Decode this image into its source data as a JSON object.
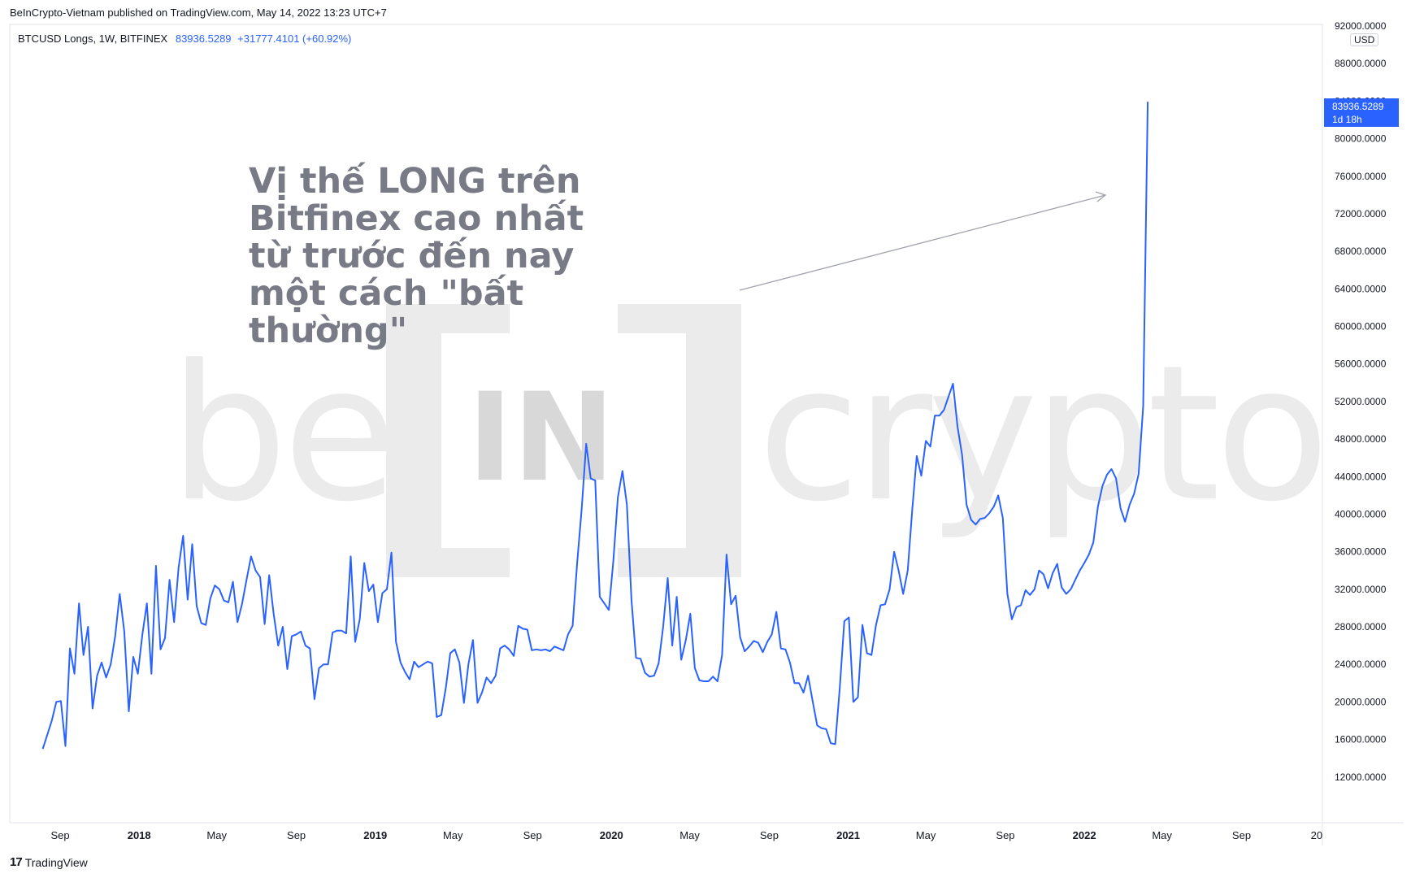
{
  "header": {
    "publisher": "BeInCrypto-Vietnam published on TradingView.com, May 14, 2022 13:23 UTC+7",
    "symbol": "BTCUSD Longs, 1W, BITFINEX",
    "last_value": "83936.5289",
    "change": "+31777.4101 (+60.92%)"
  },
  "annotation": {
    "text": "Vị thế LONG trên Bitfinex cao nhất từ trước đến nay một cách \"bất thường\""
  },
  "watermark": {
    "left": "be",
    "mid": "IN",
    "right": "crypto"
  },
  "price_scale": {
    "currency": "USD",
    "last_label": "83936.5289",
    "countdown": "1d 18h"
  },
  "footer": {
    "brand": "TradingView"
  },
  "colors": {
    "line": "#2962ff",
    "annotation": "#787b86",
    "watermark": "#ebebeb",
    "axis_text": "#131722"
  },
  "chart_data": {
    "type": "line",
    "title": "",
    "xlabel": "",
    "ylabel": "",
    "ylim": [
      8000,
      92000
    ],
    "yticks": [
      "12000.0000",
      "16000.0000",
      "20000.0000",
      "24000.0000",
      "28000.0000",
      "32000.0000",
      "36000.0000",
      "40000.0000",
      "44000.0000",
      "48000.0000",
      "52000.0000",
      "56000.0000",
      "60000.0000",
      "64000.0000",
      "68000.0000",
      "72000.0000",
      "76000.0000",
      "80000.0000",
      "84000.0000",
      "88000.0000",
      "92000.0000"
    ],
    "xticks": [
      {
        "label": "Sep",
        "date": "2017-09-01"
      },
      {
        "label": "2018",
        "date": "2018-01-01"
      },
      {
        "label": "May",
        "date": "2018-05-01"
      },
      {
        "label": "Sep",
        "date": "2018-09-01"
      },
      {
        "label": "2019",
        "date": "2019-01-01"
      },
      {
        "label": "May",
        "date": "2019-05-01"
      },
      {
        "label": "Sep",
        "date": "2019-09-01"
      },
      {
        "label": "2020",
        "date": "2020-01-01"
      },
      {
        "label": "May",
        "date": "2020-05-01"
      },
      {
        "label": "Sep",
        "date": "2020-09-01"
      },
      {
        "label": "2021",
        "date": "2021-01-01"
      },
      {
        "label": "May",
        "date": "2021-05-01"
      },
      {
        "label": "Sep",
        "date": "2021-09-01"
      },
      {
        "label": "2022",
        "date": "2022-01-01"
      },
      {
        "label": "May",
        "date": "2022-05-01"
      },
      {
        "label": "Sep",
        "date": "2022-09-01"
      },
      {
        "label": "20",
        "date": "2022-12-26"
      }
    ],
    "xrange": [
      "2017-06-15",
      "2023-01-04"
    ],
    "grid": false,
    "series": [
      {
        "points": [
          [
            "2017-08-05",
            15000
          ],
          [
            "2017-08-12",
            16500
          ],
          [
            "2017-08-19",
            18000
          ],
          [
            "2017-08-26",
            20000
          ],
          [
            "2017-09-02",
            20100
          ],
          [
            "2017-09-09",
            15300
          ],
          [
            "2017-09-16",
            25700
          ],
          [
            "2017-09-23",
            23000
          ],
          [
            "2017-09-30",
            30500
          ],
          [
            "2017-10-07",
            25000
          ],
          [
            "2017-10-14",
            28000
          ],
          [
            "2017-10-21",
            19300
          ],
          [
            "2017-10-28",
            22800
          ],
          [
            "2017-11-04",
            24200
          ],
          [
            "2017-11-11",
            22600
          ],
          [
            "2017-11-18",
            24000
          ],
          [
            "2017-11-25",
            27000
          ],
          [
            "2017-12-02",
            31500
          ],
          [
            "2017-12-09",
            27500
          ],
          [
            "2017-12-16",
            19000
          ],
          [
            "2017-12-23",
            24800
          ],
          [
            "2017-12-30",
            23000
          ],
          [
            "2018-01-06",
            27200
          ],
          [
            "2018-01-13",
            30500
          ],
          [
            "2018-01-20",
            23000
          ],
          [
            "2018-01-27",
            34500
          ],
          [
            "2018-02-03",
            25600
          ],
          [
            "2018-02-10",
            26800
          ],
          [
            "2018-02-17",
            33000
          ],
          [
            "2018-02-24",
            28500
          ],
          [
            "2018-03-03",
            34300
          ],
          [
            "2018-03-10",
            37700
          ],
          [
            "2018-03-17",
            30900
          ],
          [
            "2018-03-24",
            36800
          ],
          [
            "2018-03-31",
            30200
          ],
          [
            "2018-04-07",
            28400
          ],
          [
            "2018-04-14",
            28200
          ],
          [
            "2018-04-21",
            31000
          ],
          [
            "2018-04-28",
            32400
          ],
          [
            "2018-05-05",
            32000
          ],
          [
            "2018-05-12",
            30800
          ],
          [
            "2018-05-19",
            30600
          ],
          [
            "2018-05-26",
            32800
          ],
          [
            "2018-06-02",
            28500
          ],
          [
            "2018-06-09",
            30400
          ],
          [
            "2018-06-16",
            33000
          ],
          [
            "2018-06-23",
            35500
          ],
          [
            "2018-06-30",
            34000
          ],
          [
            "2018-07-07",
            33300
          ],
          [
            "2018-07-14",
            28300
          ],
          [
            "2018-07-21",
            33500
          ],
          [
            "2018-07-28",
            29300
          ],
          [
            "2018-08-04",
            26000
          ],
          [
            "2018-08-11",
            28000
          ],
          [
            "2018-08-18",
            23500
          ],
          [
            "2018-08-25",
            27000
          ],
          [
            "2018-09-01",
            27200
          ],
          [
            "2018-09-08",
            27500
          ],
          [
            "2018-09-15",
            26000
          ],
          [
            "2018-09-22",
            25700
          ],
          [
            "2018-09-29",
            20300
          ],
          [
            "2018-10-06",
            23600
          ],
          [
            "2018-10-13",
            24000
          ],
          [
            "2018-10-20",
            24000
          ],
          [
            "2018-10-27",
            27400
          ],
          [
            "2018-11-03",
            27600
          ],
          [
            "2018-11-10",
            27600
          ],
          [
            "2018-11-17",
            27300
          ],
          [
            "2018-11-24",
            35500
          ],
          [
            "2018-12-01",
            26400
          ],
          [
            "2018-12-08",
            28800
          ],
          [
            "2018-12-15",
            34800
          ],
          [
            "2018-12-22",
            31800
          ],
          [
            "2018-12-29",
            32500
          ],
          [
            "2019-01-05",
            28500
          ],
          [
            "2019-01-12",
            31600
          ],
          [
            "2019-01-19",
            32000
          ],
          [
            "2019-01-26",
            35900
          ],
          [
            "2019-02-02",
            26400
          ],
          [
            "2019-02-09",
            24200
          ],
          [
            "2019-02-16",
            23200
          ],
          [
            "2019-02-23",
            22400
          ],
          [
            "2019-03-02",
            24300
          ],
          [
            "2019-03-09",
            23700
          ],
          [
            "2019-03-16",
            24000
          ],
          [
            "2019-03-23",
            24300
          ],
          [
            "2019-03-30",
            24100
          ],
          [
            "2019-04-06",
            18400
          ],
          [
            "2019-04-13",
            18600
          ],
          [
            "2019-04-20",
            21500
          ],
          [
            "2019-04-27",
            25200
          ],
          [
            "2019-05-04",
            25600
          ],
          [
            "2019-05-11",
            24200
          ],
          [
            "2019-05-18",
            19900
          ],
          [
            "2019-05-25",
            24000
          ],
          [
            "2019-06-01",
            26600
          ],
          [
            "2019-06-08",
            19900
          ],
          [
            "2019-06-15",
            21000
          ],
          [
            "2019-06-22",
            22600
          ],
          [
            "2019-06-29",
            22000
          ],
          [
            "2019-07-06",
            22800
          ],
          [
            "2019-07-13",
            25700
          ],
          [
            "2019-07-20",
            26000
          ],
          [
            "2019-07-27",
            25600
          ],
          [
            "2019-08-03",
            24900
          ],
          [
            "2019-08-10",
            28100
          ],
          [
            "2019-08-17",
            27800
          ],
          [
            "2019-08-24",
            27700
          ],
          [
            "2019-08-31",
            25500
          ],
          [
            "2019-09-07",
            25600
          ],
          [
            "2019-09-14",
            25500
          ],
          [
            "2019-09-21",
            25600
          ],
          [
            "2019-09-28",
            25400
          ],
          [
            "2019-10-05",
            25900
          ],
          [
            "2019-10-12",
            25700
          ],
          [
            "2019-10-19",
            25500
          ],
          [
            "2019-10-26",
            27200
          ],
          [
            "2019-11-02",
            28100
          ],
          [
            "2019-11-09",
            34800
          ],
          [
            "2019-11-16",
            40500
          ],
          [
            "2019-11-23",
            47500
          ],
          [
            "2019-11-30",
            43800
          ],
          [
            "2019-12-07",
            43600
          ],
          [
            "2019-12-14",
            31200
          ],
          [
            "2019-12-21",
            30500
          ],
          [
            "2019-12-28",
            29800
          ],
          [
            "2020-01-04",
            35000
          ],
          [
            "2020-01-11",
            41800
          ],
          [
            "2020-01-18",
            44600
          ],
          [
            "2020-01-25",
            41000
          ],
          [
            "2020-02-01",
            30900
          ],
          [
            "2020-02-08",
            24700
          ],
          [
            "2020-02-15",
            24600
          ],
          [
            "2020-02-22",
            23100
          ],
          [
            "2020-02-29",
            22700
          ],
          [
            "2020-03-07",
            22800
          ],
          [
            "2020-03-14",
            24100
          ],
          [
            "2020-03-21",
            28000
          ],
          [
            "2020-03-28",
            33200
          ],
          [
            "2020-04-04",
            26000
          ],
          [
            "2020-04-11",
            31200
          ],
          [
            "2020-04-18",
            24500
          ],
          [
            "2020-04-25",
            26600
          ],
          [
            "2020-05-02",
            29400
          ],
          [
            "2020-05-09",
            23600
          ],
          [
            "2020-05-16",
            22300
          ],
          [
            "2020-05-23",
            22200
          ],
          [
            "2020-05-30",
            22200
          ],
          [
            "2020-06-06",
            22700
          ],
          [
            "2020-06-13",
            22200
          ],
          [
            "2020-06-20",
            25000
          ],
          [
            "2020-06-27",
            35700
          ],
          [
            "2020-07-04",
            30400
          ],
          [
            "2020-07-11",
            31300
          ],
          [
            "2020-07-18",
            26900
          ],
          [
            "2020-07-25",
            25400
          ],
          [
            "2020-08-01",
            25900
          ],
          [
            "2020-08-08",
            26500
          ],
          [
            "2020-08-15",
            26300
          ],
          [
            "2020-08-22",
            25300
          ],
          [
            "2020-08-29",
            26400
          ],
          [
            "2020-09-05",
            27200
          ],
          [
            "2020-09-12",
            29600
          ],
          [
            "2020-09-19",
            25700
          ],
          [
            "2020-09-26",
            25600
          ],
          [
            "2020-10-03",
            24200
          ],
          [
            "2020-10-10",
            22000
          ],
          [
            "2020-10-17",
            22000
          ],
          [
            "2020-10-24",
            21000
          ],
          [
            "2020-10-31",
            22800
          ],
          [
            "2020-11-07",
            20100
          ],
          [
            "2020-11-14",
            17500
          ],
          [
            "2020-11-21",
            17200
          ],
          [
            "2020-11-28",
            17100
          ],
          [
            "2020-12-05",
            15600
          ],
          [
            "2020-12-12",
            15500
          ],
          [
            "2020-12-19",
            21500
          ],
          [
            "2020-12-26",
            28600
          ],
          [
            "2021-01-02",
            29000
          ],
          [
            "2021-01-09",
            20000
          ],
          [
            "2021-01-16",
            20500
          ],
          [
            "2021-01-23",
            28200
          ],
          [
            "2021-01-30",
            25200
          ],
          [
            "2021-02-06",
            25000
          ],
          [
            "2021-02-13",
            28200
          ],
          [
            "2021-02-20",
            30300
          ],
          [
            "2021-02-27",
            30400
          ],
          [
            "2021-03-06",
            32000
          ],
          [
            "2021-03-13",
            36000
          ],
          [
            "2021-03-20",
            34000
          ],
          [
            "2021-03-27",
            31500
          ],
          [
            "2021-04-03",
            34000
          ],
          [
            "2021-04-10",
            40500
          ],
          [
            "2021-04-17",
            46200
          ],
          [
            "2021-04-24",
            44100
          ],
          [
            "2021-05-01",
            47800
          ],
          [
            "2021-05-08",
            47200
          ],
          [
            "2021-05-15",
            50500
          ],
          [
            "2021-05-22",
            50500
          ],
          [
            "2021-05-29",
            51100
          ],
          [
            "2021-06-05",
            52500
          ],
          [
            "2021-06-12",
            53900
          ],
          [
            "2021-06-19",
            49300
          ],
          [
            "2021-06-26",
            46300
          ],
          [
            "2021-07-03",
            41000
          ],
          [
            "2021-07-10",
            39400
          ],
          [
            "2021-07-17",
            38900
          ],
          [
            "2021-07-24",
            39500
          ],
          [
            "2021-07-31",
            39600
          ],
          [
            "2021-08-07",
            40100
          ],
          [
            "2021-08-14",
            40800
          ],
          [
            "2021-08-21",
            42000
          ],
          [
            "2021-08-28",
            39600
          ],
          [
            "2021-09-04",
            31500
          ],
          [
            "2021-09-11",
            28800
          ],
          [
            "2021-09-18",
            30100
          ],
          [
            "2021-09-25",
            30300
          ],
          [
            "2021-10-02",
            31900
          ],
          [
            "2021-10-09",
            31400
          ],
          [
            "2021-10-16",
            32000
          ],
          [
            "2021-10-23",
            34000
          ],
          [
            "2021-10-30",
            33600
          ],
          [
            "2021-11-06",
            32100
          ],
          [
            "2021-11-13",
            33700
          ],
          [
            "2021-11-20",
            34700
          ],
          [
            "2021-11-27",
            32200
          ],
          [
            "2021-12-04",
            31500
          ],
          [
            "2021-12-11",
            32000
          ],
          [
            "2021-12-18",
            33000
          ],
          [
            "2021-12-25",
            34000
          ],
          [
            "2022-01-01",
            34800
          ],
          [
            "2022-01-08",
            35700
          ],
          [
            "2022-01-15",
            37000
          ],
          [
            "2022-01-22",
            40800
          ],
          [
            "2022-01-29",
            43000
          ],
          [
            "2022-02-05",
            44200
          ],
          [
            "2022-02-12",
            44800
          ],
          [
            "2022-02-19",
            43800
          ],
          [
            "2022-02-26",
            40600
          ],
          [
            "2022-03-05",
            39200
          ],
          [
            "2022-03-12",
            41000
          ],
          [
            "2022-03-19",
            42200
          ],
          [
            "2022-03-26",
            44300
          ],
          [
            "2022-04-02",
            51500
          ],
          [
            "2022-04-09",
            83936.5289
          ]
        ]
      }
    ]
  }
}
